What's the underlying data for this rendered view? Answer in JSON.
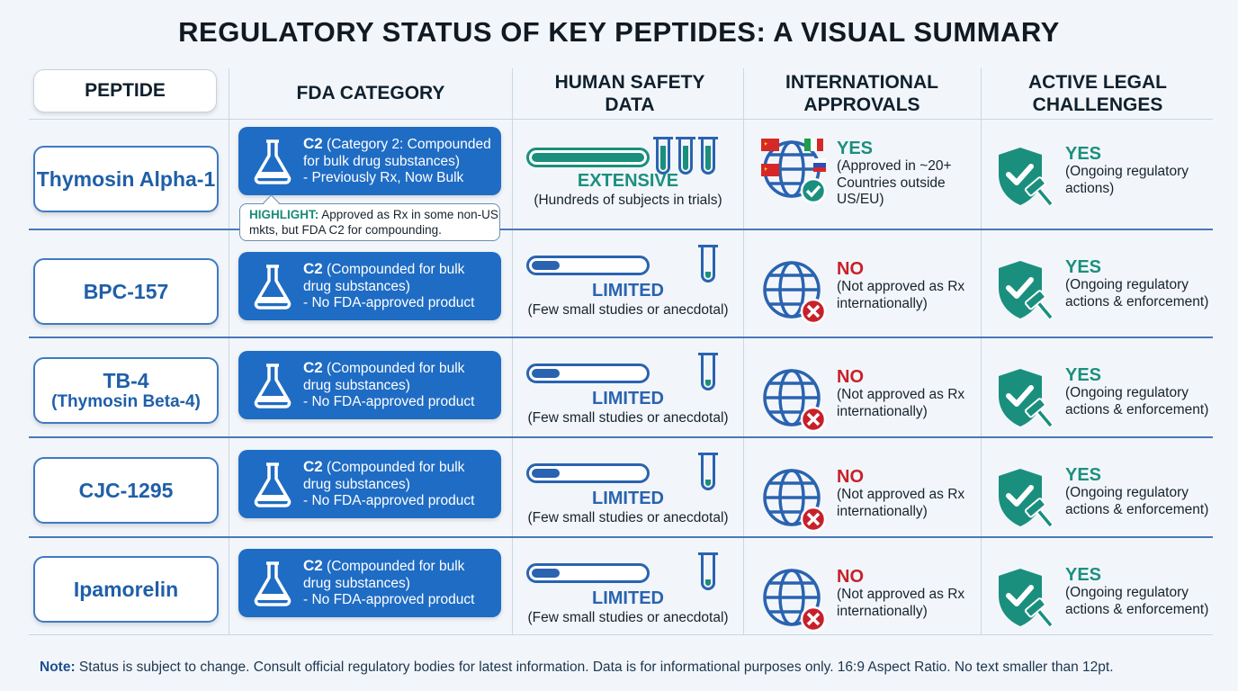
{
  "title": "REGULATORY STATUS OF KEY PEPTIDES: A VISUAL SUMMARY",
  "headers": {
    "peptide": "PEPTIDE",
    "fda": "FDA CATEGORY",
    "safety": "HUMAN SAFETY DATA",
    "intl": "INTERNATIONAL APPROVALS",
    "legal": "ACTIVE LEGAL CHALLENGES"
  },
  "colors": {
    "primary_blue": "#1f6cc4",
    "teal": "#1b8f7e",
    "no_red": "#c8202a",
    "yes_green": "#1b8f7e"
  },
  "highlight": {
    "label": "HIGHLIGHT:",
    "text": "Approved as Rx in some non-US mkts, but FDA C2 for compounding."
  },
  "rows": [
    {
      "name": "Thymosin Alpha-1",
      "name_sub": "",
      "fda_code": "C2",
      "fda_line1": "(Category 2: Compounded for bulk drug substances)",
      "fda_line2": "- Previously Rx, Now Bulk",
      "safety_level": "EXTENSIVE",
      "safety_fill": 1.0,
      "safety_desc": "(Hundreds of subjects in trials)",
      "intl_status": "YES",
      "intl_desc": "(Approved in ~20+ Countries outside US/EU)",
      "intl_icon": "globe-check-flags-icon",
      "legal_status": "YES",
      "legal_desc": "(Ongoing regulatory actions)"
    },
    {
      "name": "BPC-157",
      "name_sub": "",
      "fda_code": "C2",
      "fda_line1": "(Compounded for bulk drug substances)",
      "fda_line2": "- No FDA-approved product",
      "safety_level": "LIMITED",
      "safety_fill": 0.25,
      "safety_desc": "(Few small studies or anecdotal)",
      "intl_status": "NO",
      "intl_desc": "(Not approved as Rx internationally)",
      "intl_icon": "globe-x-icon",
      "legal_status": "YES",
      "legal_desc": "(Ongoing regulatory actions & enforcement)"
    },
    {
      "name": "TB-4",
      "name_sub": "(Thymosin Beta-4)",
      "fda_code": "C2",
      "fda_line1": "(Compounded for bulk drug substances)",
      "fda_line2": "- No FDA-approved product",
      "safety_level": "LIMITED",
      "safety_fill": 0.25,
      "safety_desc": "(Few small studies or anecdotal)",
      "intl_status": "NO",
      "intl_desc": "(Not approved as Rx internationally)",
      "intl_icon": "globe-x-icon",
      "legal_status": "YES",
      "legal_desc": "(Ongoing regulatory actions & enforcement)"
    },
    {
      "name": "CJC-1295",
      "name_sub": "",
      "fda_code": "C2",
      "fda_line1": "(Compounded for bulk drug substances)",
      "fda_line2": "- No FDA-approved product",
      "safety_level": "LIMITED",
      "safety_fill": 0.25,
      "safety_desc": "(Few small studies or anecdotal)",
      "intl_status": "NO",
      "intl_desc": "(Not approved as Rx internationally)",
      "intl_icon": "globe-x-icon",
      "legal_status": "YES",
      "legal_desc": "(Ongoing regulatory actions & enforcement)"
    },
    {
      "name": "Ipamorelin",
      "name_sub": "",
      "fda_code": "C2",
      "fda_line1": "(Compounded for bulk drug substances)",
      "fda_line2": "- No FDA-approved product",
      "safety_level": "LIMITED",
      "safety_fill": 0.25,
      "safety_desc": "(Few small studies or anecdotal)",
      "intl_status": "NO",
      "intl_desc": "(Not approved as Rx internationally)",
      "intl_icon": "globe-x-icon",
      "legal_status": "YES",
      "legal_desc": "(Ongoing regulatory actions & enforcement)"
    }
  ],
  "note": {
    "label": "Note:",
    "text": "Status is subject to change. Consult official regulatory bodies for latest information. Data is for informational purposes only. 16:9 Aspect Ratio. No text smaller than 12pt."
  }
}
